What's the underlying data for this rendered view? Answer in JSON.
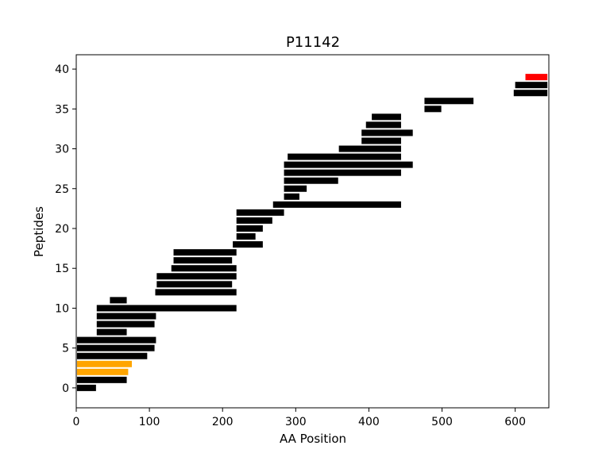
{
  "chart_data": {
    "type": "bar",
    "orientation": "horizontal-ranges",
    "title": "P11142",
    "xlabel": "AA Position",
    "ylabel": "Peptides",
    "xlim": [
      0,
      646
    ],
    "ylim": [
      -2.5,
      41.8
    ],
    "xticks": [
      0,
      100,
      200,
      300,
      400,
      500,
      600
    ],
    "yticks": [
      0,
      5,
      10,
      15,
      20,
      25,
      30,
      35,
      40
    ],
    "grid": false,
    "colors": {
      "default": "#000000",
      "highlight_orange": "#ffa500",
      "highlight_red": "#ff0000"
    },
    "peptides": [
      {
        "y": 0,
        "start": 1,
        "end": 27,
        "color": "#000000"
      },
      {
        "y": 1,
        "start": 1,
        "end": 69,
        "color": "#000000"
      },
      {
        "y": 2,
        "start": 1,
        "end": 71,
        "color": "#ffa500"
      },
      {
        "y": 3,
        "start": 1,
        "end": 76,
        "color": "#ffa500"
      },
      {
        "y": 4,
        "start": 1,
        "end": 97,
        "color": "#000000"
      },
      {
        "y": 5,
        "start": 1,
        "end": 107,
        "color": "#000000"
      },
      {
        "y": 6,
        "start": 1,
        "end": 109,
        "color": "#000000"
      },
      {
        "y": 7,
        "start": 28,
        "end": 69,
        "color": "#000000"
      },
      {
        "y": 8,
        "start": 28,
        "end": 107,
        "color": "#000000"
      },
      {
        "y": 9,
        "start": 28,
        "end": 109,
        "color": "#000000"
      },
      {
        "y": 10,
        "start": 28,
        "end": 219,
        "color": "#000000"
      },
      {
        "y": 11,
        "start": 46,
        "end": 69,
        "color": "#000000"
      },
      {
        "y": 12,
        "start": 108,
        "end": 219,
        "color": "#000000"
      },
      {
        "y": 13,
        "start": 110,
        "end": 213,
        "color": "#000000"
      },
      {
        "y": 14,
        "start": 110,
        "end": 219,
        "color": "#000000"
      },
      {
        "y": 15,
        "start": 130,
        "end": 219,
        "color": "#000000"
      },
      {
        "y": 16,
        "start": 133,
        "end": 213,
        "color": "#000000"
      },
      {
        "y": 17,
        "start": 133,
        "end": 219,
        "color": "#000000"
      },
      {
        "y": 18,
        "start": 214,
        "end": 255,
        "color": "#000000"
      },
      {
        "y": 19,
        "start": 219,
        "end": 245,
        "color": "#000000"
      },
      {
        "y": 20,
        "start": 219,
        "end": 255,
        "color": "#000000"
      },
      {
        "y": 21,
        "start": 219,
        "end": 268,
        "color": "#000000"
      },
      {
        "y": 22,
        "start": 219,
        "end": 284,
        "color": "#000000"
      },
      {
        "y": 23,
        "start": 269,
        "end": 444,
        "color": "#000000"
      },
      {
        "y": 24,
        "start": 284,
        "end": 305,
        "color": "#000000"
      },
      {
        "y": 25,
        "start": 284,
        "end": 315,
        "color": "#000000"
      },
      {
        "y": 26,
        "start": 284,
        "end": 358,
        "color": "#000000"
      },
      {
        "y": 27,
        "start": 284,
        "end": 444,
        "color": "#000000"
      },
      {
        "y": 28,
        "start": 284,
        "end": 460,
        "color": "#000000"
      },
      {
        "y": 29,
        "start": 289,
        "end": 444,
        "color": "#000000"
      },
      {
        "y": 30,
        "start": 359,
        "end": 444,
        "color": "#000000"
      },
      {
        "y": 31,
        "start": 390,
        "end": 444,
        "color": "#000000"
      },
      {
        "y": 32,
        "start": 390,
        "end": 460,
        "color": "#000000"
      },
      {
        "y": 33,
        "start": 396,
        "end": 444,
        "color": "#000000"
      },
      {
        "y": 34,
        "start": 404,
        "end": 444,
        "color": "#000000"
      },
      {
        "y": 35,
        "start": 476,
        "end": 499,
        "color": "#000000"
      },
      {
        "y": 36,
        "start": 476,
        "end": 543,
        "color": "#000000"
      },
      {
        "y": 37,
        "start": 598,
        "end": 644,
        "color": "#000000"
      },
      {
        "y": 38,
        "start": 600,
        "end": 644,
        "color": "#000000"
      },
      {
        "y": 39,
        "start": 614,
        "end": 644,
        "color": "#ff0000"
      }
    ]
  }
}
